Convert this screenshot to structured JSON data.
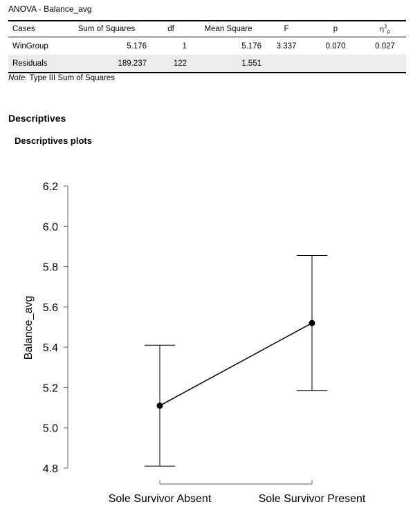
{
  "anova": {
    "title": "ANOVA - Balance_avg",
    "headers": {
      "cases": "Cases",
      "ss": "Sum of Squares",
      "df": "df",
      "ms": "Mean Square",
      "f": "F",
      "p": "p",
      "eta_base": "η",
      "eta_sup": "2",
      "eta_sub": "p"
    },
    "rows": [
      {
        "cases": "WinGroup",
        "ss": "5.176",
        "df": "1",
        "ms": "5.176",
        "f": "3.337",
        "p": "0.070",
        "eta": "0.027"
      },
      {
        "cases": "Residuals",
        "ss": "189.237",
        "df": "122",
        "ms": "1.551",
        "f": "",
        "p": "",
        "eta": ""
      }
    ],
    "note_label": "Note.",
    "note_text": " Type III Sum of Squares"
  },
  "descriptives": {
    "section_title": "Descriptives",
    "subtitle": "Descriptives plots"
  },
  "chart_data": {
    "type": "line",
    "categories": [
      "Sole Survivor Absent",
      "Sole Survivor Present"
    ],
    "series": [
      {
        "values": [
          5.11,
          5.52
        ],
        "ci_lower": [
          4.81,
          5.185
        ],
        "ci_upper": [
          5.41,
          5.855
        ]
      }
    ],
    "ylabel": "Balance_avg",
    "xlabel": "",
    "ylim": [
      4.8,
      6.2
    ],
    "yticks": [
      "4.8",
      "5.0",
      "5.2",
      "5.4",
      "5.6",
      "5.8",
      "6.0",
      "6.2"
    ],
    "grid": false,
    "line_color": "#000000"
  }
}
